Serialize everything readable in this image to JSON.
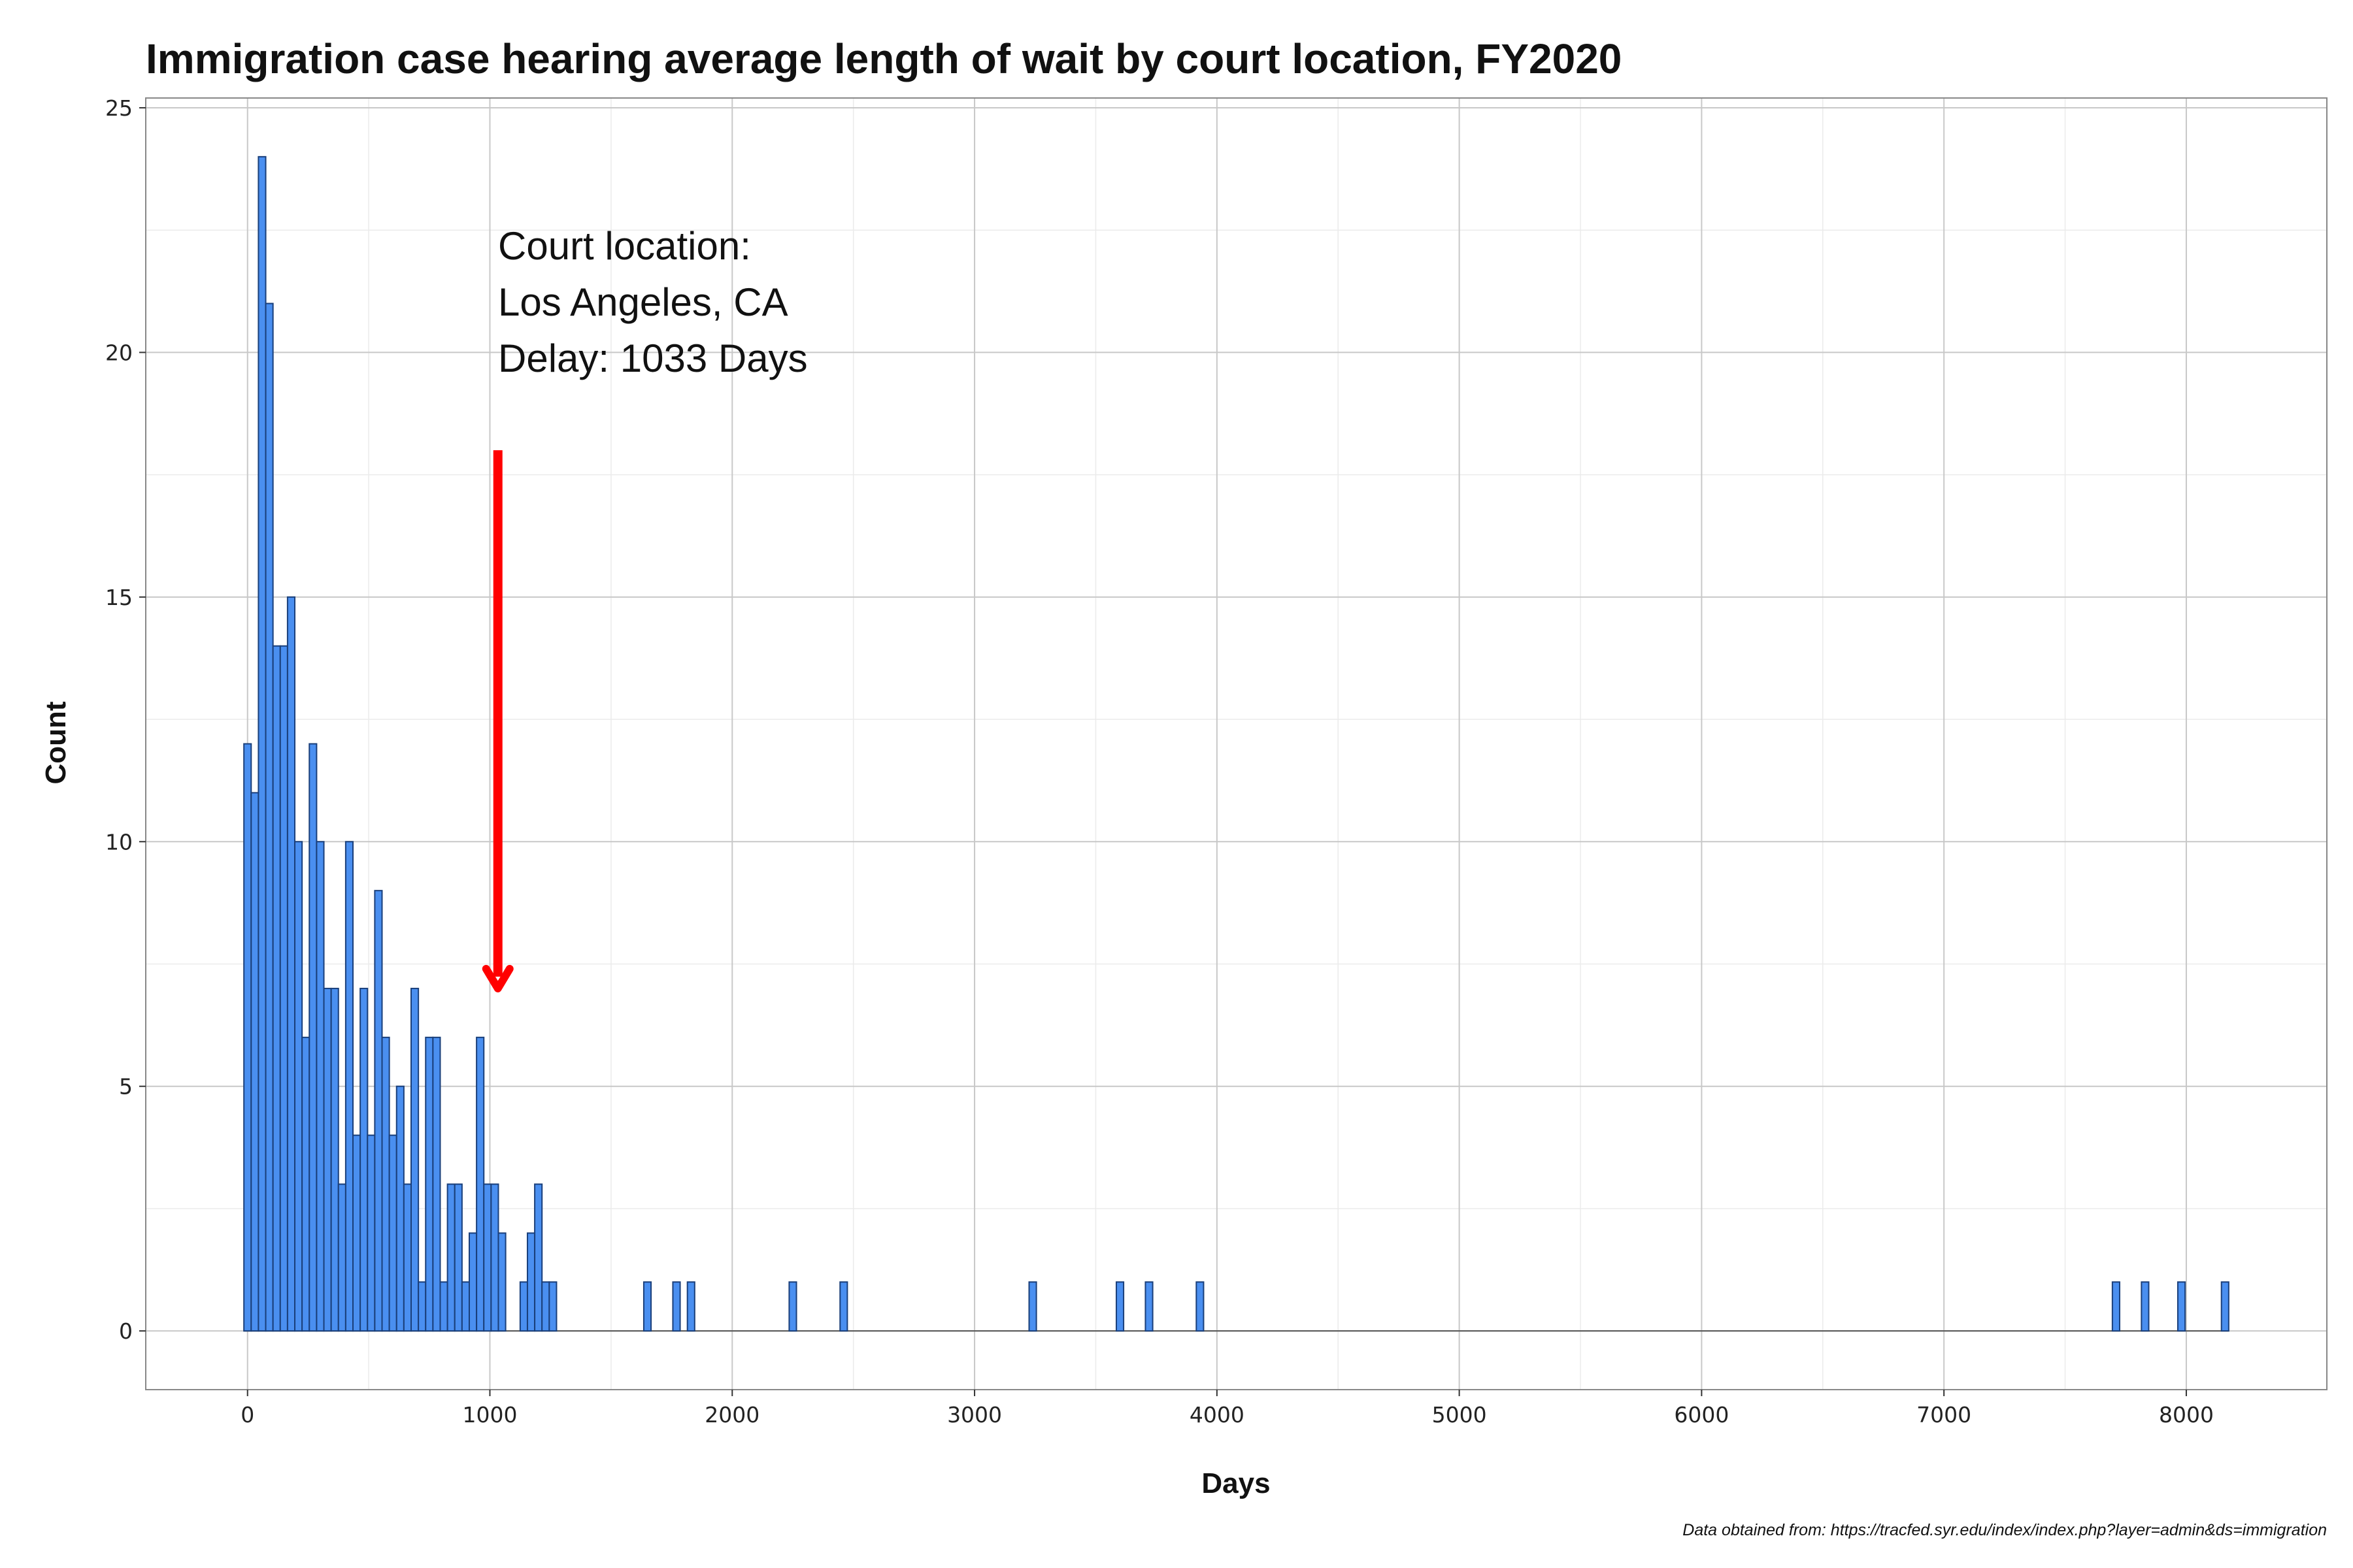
{
  "chart_data": {
    "type": "bar",
    "title": "Immigration case hearing average length of wait by court location, FY2020",
    "xlabel": "Days",
    "ylabel": "Count",
    "xlim": [
      -420,
      8580
    ],
    "ylim": [
      -1.2,
      25.2
    ],
    "xticks": [
      0,
      1000,
      2000,
      3000,
      4000,
      5000,
      6000,
      7000,
      8000
    ],
    "yticks": [
      0,
      5,
      10,
      15,
      20,
      25
    ],
    "grid": true,
    "bin_width": 30,
    "bar_color": "#4a8ff0",
    "bar_edge_color": "#1a3f7a",
    "bins": [
      {
        "x": 0,
        "count": 12
      },
      {
        "x": 30,
        "count": 11
      },
      {
        "x": 60,
        "count": 24
      },
      {
        "x": 90,
        "count": 21
      },
      {
        "x": 120,
        "count": 14
      },
      {
        "x": 150,
        "count": 14
      },
      {
        "x": 180,
        "count": 15
      },
      {
        "x": 210,
        "count": 10
      },
      {
        "x": 240,
        "count": 6
      },
      {
        "x": 270,
        "count": 12
      },
      {
        "x": 300,
        "count": 10
      },
      {
        "x": 330,
        "count": 7
      },
      {
        "x": 360,
        "count": 7
      },
      {
        "x": 390,
        "count": 3
      },
      {
        "x": 420,
        "count": 10
      },
      {
        "x": 450,
        "count": 4
      },
      {
        "x": 480,
        "count": 7
      },
      {
        "x": 510,
        "count": 4
      },
      {
        "x": 540,
        "count": 9
      },
      {
        "x": 570,
        "count": 6
      },
      {
        "x": 600,
        "count": 4
      },
      {
        "x": 630,
        "count": 5
      },
      {
        "x": 660,
        "count": 3
      },
      {
        "x": 690,
        "count": 7
      },
      {
        "x": 720,
        "count": 1
      },
      {
        "x": 750,
        "count": 6
      },
      {
        "x": 780,
        "count": 6
      },
      {
        "x": 810,
        "count": 1
      },
      {
        "x": 840,
        "count": 3
      },
      {
        "x": 870,
        "count": 3
      },
      {
        "x": 900,
        "count": 1
      },
      {
        "x": 930,
        "count": 2
      },
      {
        "x": 960,
        "count": 6
      },
      {
        "x": 990,
        "count": 3
      },
      {
        "x": 1020,
        "count": 3
      },
      {
        "x": 1050,
        "count": 2
      },
      {
        "x": 1140,
        "count": 1
      },
      {
        "x": 1170,
        "count": 2
      },
      {
        "x": 1200,
        "count": 3
      },
      {
        "x": 1230,
        "count": 1
      },
      {
        "x": 1260,
        "count": 1
      },
      {
        "x": 1650,
        "count": 1
      },
      {
        "x": 1770,
        "count": 1
      },
      {
        "x": 1830,
        "count": 1
      },
      {
        "x": 2250,
        "count": 1
      },
      {
        "x": 2460,
        "count": 1
      },
      {
        "x": 3240,
        "count": 1
      },
      {
        "x": 3600,
        "count": 1
      },
      {
        "x": 3720,
        "count": 1
      },
      {
        "x": 3930,
        "count": 1
      },
      {
        "x": 7710,
        "count": 1
      },
      {
        "x": 7830,
        "count": 1
      },
      {
        "x": 7980,
        "count": 1
      },
      {
        "x": 8160,
        "count": 1
      }
    ],
    "annotation": {
      "lines": [
        "Court location:",
        "Los Angeles, CA",
        "Delay:  1033  Days"
      ],
      "arrow_x": 1033,
      "arrow_from": 18,
      "arrow_to": 7,
      "arrow_color": "#ff0000"
    },
    "caption": "Data obtained from: https://tracfed.syr.edu/index/index.php?layer=admin&ds=immigration"
  }
}
